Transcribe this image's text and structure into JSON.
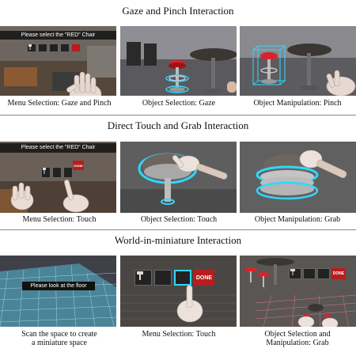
{
  "sections": [
    {
      "title": "Gaze and Pinch Interaction",
      "panels": [
        {
          "caption": "Menu Selection: Gaze and Pinch",
          "banner": "Please select the \"RED\" Chair"
        },
        {
          "caption": "Object Selection: Gaze"
        },
        {
          "caption": "Object Manipulation: Pinch"
        }
      ]
    },
    {
      "title": "Direct Touch and Grab Interaction",
      "panels": [
        {
          "caption": "Menu Selection: Touch",
          "banner": "Please select the \"RED\" Chair",
          "done_label": "DONE"
        },
        {
          "caption": "Object Selection: Touch"
        },
        {
          "caption": "Object Manipulation: Grab"
        }
      ]
    },
    {
      "title": "World-in-miniature Interaction",
      "panels": [
        {
          "caption_line1": "Scan the space to create",
          "caption_line2": "a miniature space",
          "banner": "Please look at the floor"
        },
        {
          "caption": "Menu Selection: Touch",
          "done_label": "DONE"
        },
        {
          "caption_line1": "Object Selection and",
          "caption_line2": "Manipulation: Grab",
          "done_label": "DONE"
        }
      ]
    }
  ],
  "colors": {
    "highlight": "#2fd7ff",
    "seat_red": "#d8232a",
    "done_red": "#b81d1d"
  }
}
